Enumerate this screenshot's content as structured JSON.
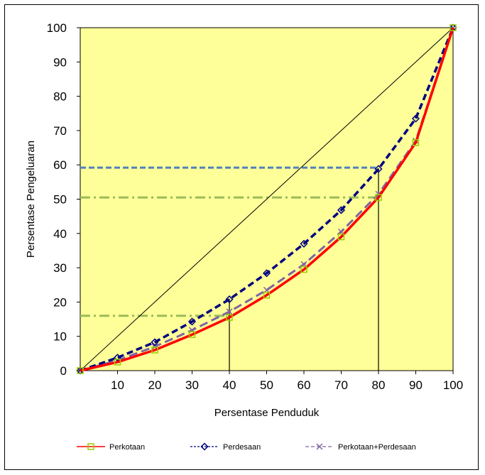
{
  "chart_data": {
    "type": "line",
    "title": "",
    "xlabel": "Persentase Penduduk",
    "ylabel": "Persentase Pengeluaran",
    "xlim": [
      0,
      100
    ],
    "ylim": [
      0,
      100
    ],
    "x_ticks": [
      "10",
      "20",
      "30",
      "40",
      "50",
      "60",
      "70",
      "80",
      "90",
      "100"
    ],
    "y_ticks": [
      "0",
      "10",
      "20",
      "30",
      "40",
      "50",
      "60",
      "70",
      "80",
      "90",
      "100"
    ],
    "grid": false,
    "legend_position": "bottom",
    "plot_background": "#FFFF99",
    "x": [
      0,
      10,
      20,
      30,
      40,
      50,
      60,
      70,
      80,
      90,
      100
    ],
    "series": [
      {
        "name": "Perkotaan",
        "color": "#FF0000",
        "marker": "square",
        "marker_color": "#99CC00",
        "values": [
          0,
          2.5,
          6,
          10.5,
          15.5,
          22,
          29.5,
          39,
          50.5,
          66.5,
          100
        ]
      },
      {
        "name": "Perdesaan",
        "color": "#000080",
        "marker": "diamond",
        "marker_color": "#000080",
        "values": [
          0,
          3.8,
          8.3,
          14.3,
          20.8,
          28.4,
          37,
          46.8,
          58.8,
          73.5,
          100
        ]
      },
      {
        "name": "Perkotaan+Perdesaan",
        "color": "#8064A2",
        "marker": "x",
        "marker_color": "#8064A2",
        "values": [
          0,
          3,
          7,
          11.8,
          17.2,
          23.5,
          31,
          40.5,
          51.5,
          67,
          100
        ]
      }
    ],
    "equality_line": {
      "from": [
        0,
        0
      ],
      "to": [
        100,
        100
      ],
      "color": "#000000"
    },
    "reference_lines": [
      {
        "type": "horizontal",
        "y": 59.2,
        "x_end": 80,
        "style": "dashed",
        "color": "#4F81BD"
      },
      {
        "type": "horizontal",
        "y": 50.5,
        "x_end": 80,
        "style": "dashdot",
        "color": "#9BBB59"
      },
      {
        "type": "horizontal",
        "y": 16,
        "x_end": 40,
        "style": "dashdot",
        "color": "#9BBB59"
      },
      {
        "type": "vertical",
        "x": 40,
        "y_top": 21,
        "color": "#000000"
      },
      {
        "type": "vertical",
        "x": 80,
        "y_top": 59,
        "color": "#000000"
      }
    ]
  }
}
